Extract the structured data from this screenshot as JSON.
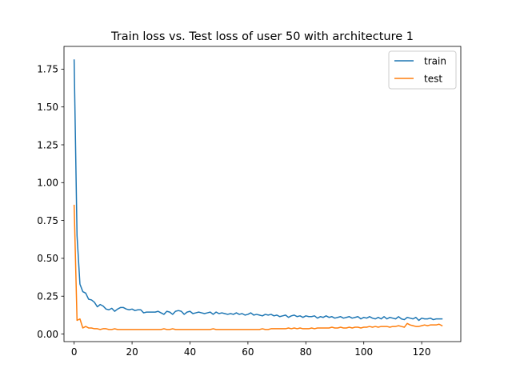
{
  "chart_data": {
    "type": "line",
    "title": "Train loss vs. Test loss of user 50 with architecture 1",
    "xlabel": "",
    "ylabel": "",
    "xlim": [
      -3.5,
      133.5
    ],
    "ylim": [
      -0.05,
      1.9
    ],
    "xticks": [
      0,
      20,
      40,
      60,
      80,
      100,
      120
    ],
    "yticks": [
      0.0,
      0.25,
      0.5,
      0.75,
      1.0,
      1.25,
      1.5,
      1.75
    ],
    "ytick_labels": [
      "0.00",
      "0.25",
      "0.50",
      "0.75",
      "1.00",
      "1.25",
      "1.50",
      "1.75"
    ],
    "grid": false,
    "legend_position": "top-right",
    "series": [
      {
        "name": "train",
        "color": "#1f77b4",
        "values": [
          1.81,
          0.65,
          0.33,
          0.28,
          0.27,
          0.23,
          0.225,
          0.21,
          0.18,
          0.195,
          0.185,
          0.165,
          0.16,
          0.17,
          0.15,
          0.165,
          0.175,
          0.175,
          0.165,
          0.16,
          0.165,
          0.155,
          0.16,
          0.16,
          0.14,
          0.145,
          0.145,
          0.145,
          0.145,
          0.15,
          0.14,
          0.13,
          0.15,
          0.145,
          0.13,
          0.15,
          0.155,
          0.15,
          0.13,
          0.145,
          0.15,
          0.135,
          0.14,
          0.145,
          0.14,
          0.135,
          0.14,
          0.145,
          0.13,
          0.145,
          0.135,
          0.14,
          0.135,
          0.13,
          0.135,
          0.13,
          0.14,
          0.13,
          0.135,
          0.125,
          0.13,
          0.14,
          0.125,
          0.13,
          0.125,
          0.12,
          0.13,
          0.125,
          0.13,
          0.12,
          0.125,
          0.115,
          0.12,
          0.125,
          0.11,
          0.12,
          0.125,
          0.115,
          0.12,
          0.11,
          0.12,
          0.115,
          0.115,
          0.12,
          0.105,
          0.115,
          0.11,
          0.12,
          0.11,
          0.115,
          0.105,
          0.11,
          0.115,
          0.105,
          0.11,
          0.115,
          0.105,
          0.11,
          0.115,
          0.1,
          0.11,
          0.105,
          0.115,
          0.105,
          0.1,
          0.11,
          0.1,
          0.115,
          0.1,
          0.11,
          0.105,
          0.1,
          0.115,
          0.1,
          0.095,
          0.11,
          0.105,
          0.1,
          0.11,
          0.09,
          0.105,
          0.1,
          0.1,
          0.105,
          0.095,
          0.1,
          0.1,
          0.1
        ]
      },
      {
        "name": "test",
        "color": "#ff7f0e",
        "values": [
          0.85,
          0.09,
          0.1,
          0.04,
          0.05,
          0.04,
          0.04,
          0.035,
          0.035,
          0.03,
          0.035,
          0.035,
          0.03,
          0.03,
          0.035,
          0.03,
          0.03,
          0.03,
          0.03,
          0.03,
          0.03,
          0.03,
          0.03,
          0.03,
          0.03,
          0.03,
          0.03,
          0.03,
          0.03,
          0.03,
          0.03,
          0.035,
          0.03,
          0.03,
          0.035,
          0.03,
          0.03,
          0.03,
          0.03,
          0.03,
          0.03,
          0.03,
          0.03,
          0.03,
          0.03,
          0.03,
          0.03,
          0.03,
          0.035,
          0.03,
          0.03,
          0.03,
          0.03,
          0.03,
          0.03,
          0.03,
          0.03,
          0.03,
          0.03,
          0.03,
          0.03,
          0.03,
          0.03,
          0.03,
          0.03,
          0.035,
          0.03,
          0.03,
          0.035,
          0.035,
          0.035,
          0.035,
          0.035,
          0.035,
          0.04,
          0.035,
          0.04,
          0.035,
          0.04,
          0.035,
          0.035,
          0.035,
          0.04,
          0.035,
          0.04,
          0.04,
          0.04,
          0.04,
          0.04,
          0.045,
          0.04,
          0.04,
          0.045,
          0.04,
          0.04,
          0.045,
          0.04,
          0.045,
          0.045,
          0.04,
          0.045,
          0.045,
          0.05,
          0.045,
          0.05,
          0.045,
          0.05,
          0.05,
          0.05,
          0.045,
          0.05,
          0.05,
          0.055,
          0.05,
          0.045,
          0.07,
          0.06,
          0.055,
          0.05,
          0.05,
          0.055,
          0.06,
          0.055,
          0.06,
          0.06,
          0.06,
          0.065,
          0.055
        ]
      }
    ]
  }
}
